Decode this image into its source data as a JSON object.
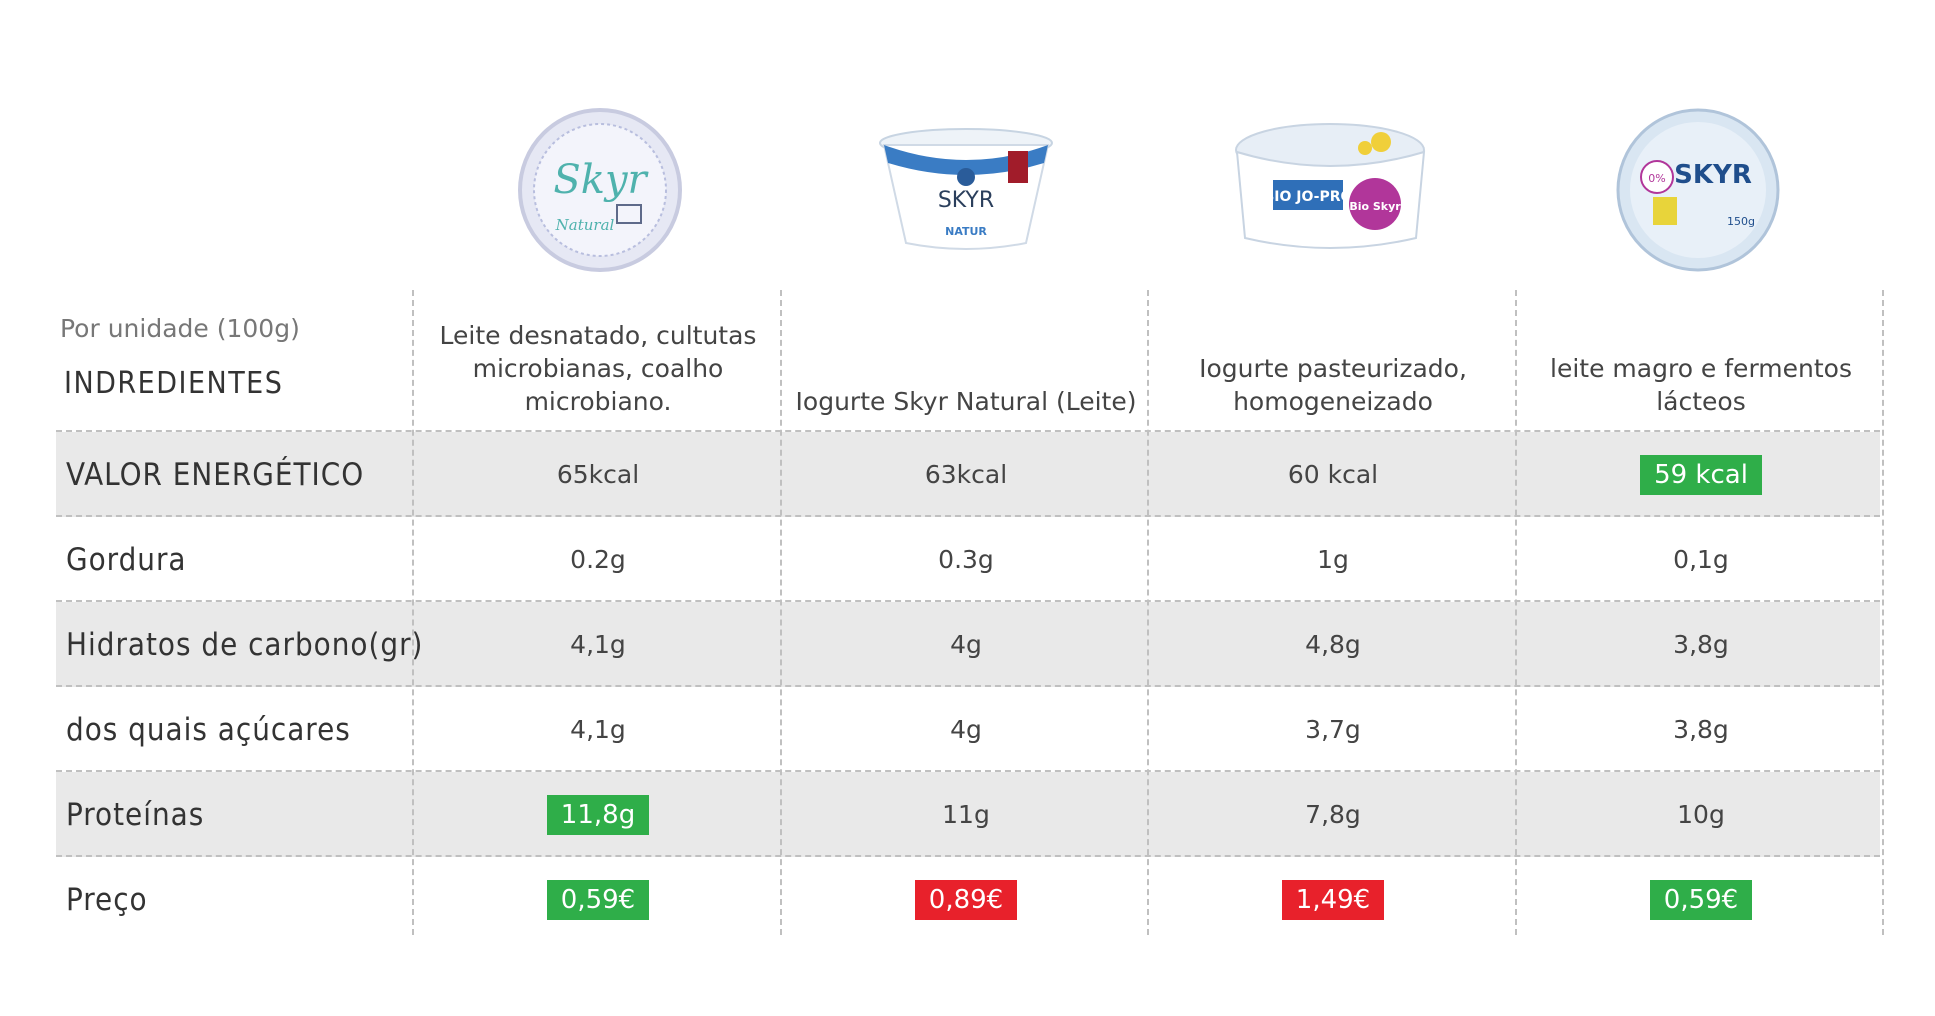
{
  "products": [
    {
      "icon": "skyr-milbona-cup-icon",
      "brand": "Skyr",
      "flavor": "Natural"
    },
    {
      "icon": "skyr-arla-cup-icon",
      "brand": "SKYR",
      "flavor": "NATUR"
    },
    {
      "icon": "bio-jopro-cup-icon",
      "brand": "BIO JO-PRO",
      "flavor": "Bio Skyr"
    },
    {
      "icon": "skyr-pingo-doce-cup-icon",
      "brand": "SKYR",
      "flavor": "150g"
    }
  ],
  "table": {
    "unit_note": "Por unidade (100g)",
    "ingredients_label": "INDREDIENTES",
    "ingredients": [
      "Leite desnatado, cultutas microbianas, coalho microbiano.",
      "Iogurte Skyr Natural (Leite)",
      "Iogurte pasteurizado, homogeneizado",
      "leite magro e fermentos lácteos"
    ],
    "rows": [
      {
        "label": "VALOR ENERGÉTICO",
        "values": [
          "65kcal",
          "63kcal",
          "60 kcal",
          "59 kcal"
        ],
        "highlight": [
          null,
          null,
          null,
          "green"
        ]
      },
      {
        "label": "Gordura",
        "values": [
          "0.2g",
          "0.3g",
          "1g",
          "0,1g"
        ],
        "highlight": [
          null,
          null,
          null,
          null
        ]
      },
      {
        "label": "Hidratos de carbono(gr)",
        "values": [
          "4,1g",
          "4g",
          "4,8g",
          "3,8g"
        ],
        "highlight": [
          null,
          null,
          null,
          null
        ]
      },
      {
        "label": "dos quais açúcares",
        "values": [
          "4,1g",
          "4g",
          "3,7g",
          "3,8g"
        ],
        "highlight": [
          null,
          null,
          null,
          null
        ]
      },
      {
        "label": "Proteínas",
        "values": [
          "11,8g",
          "11g",
          "7,8g",
          "10g"
        ],
        "highlight": [
          "green",
          null,
          null,
          null
        ]
      },
      {
        "label": "Preço",
        "values": [
          "0,59€",
          "0,89€",
          "1,49€",
          "0,59€"
        ],
        "highlight": [
          "green",
          "red",
          "red",
          "green"
        ]
      }
    ]
  },
  "colors": {
    "green": "#2fae49",
    "red": "#e8212b",
    "shade": "#e9e9e9",
    "grid": "#c0c0c0"
  }
}
